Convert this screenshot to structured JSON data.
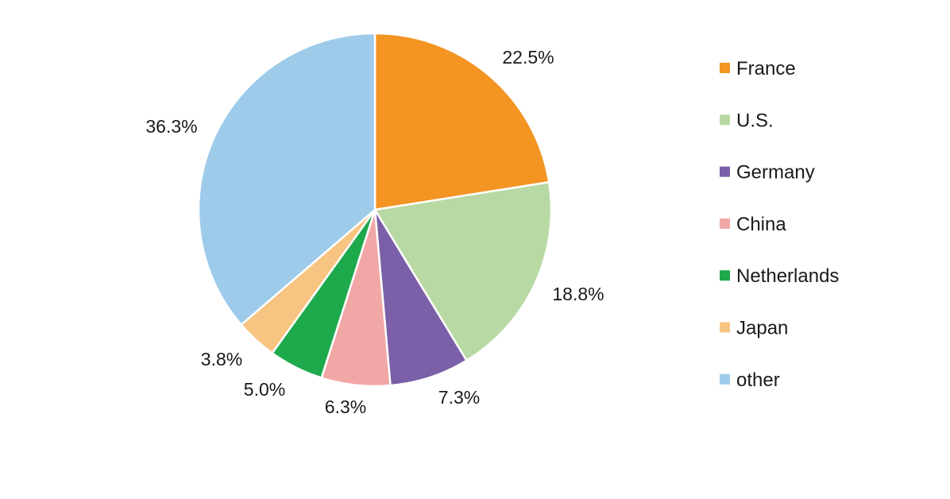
{
  "chart_data": {
    "type": "pie",
    "series": [
      {
        "categories": [
          "France",
          "U.S.",
          "Germany",
          "China",
          "Netherlands",
          "Japan",
          "other"
        ],
        "values": [
          22.5,
          18.8,
          7.3,
          6.3,
          5.0,
          3.8,
          36.3
        ],
        "labels": [
          "22.5%",
          "18.8%",
          "7.3%",
          "6.3%",
          "5.0%",
          "3.8%",
          "36.3%"
        ],
        "colors": [
          "#f39423",
          "#b9d9a4",
          "#7b5fa8",
          "#f2a7a7",
          "#1fa94d",
          "#f7c482",
          "#9ecbea"
        ]
      }
    ],
    "start_angle": "12 o'clock",
    "direction": "clockwise",
    "legend": "right"
  }
}
